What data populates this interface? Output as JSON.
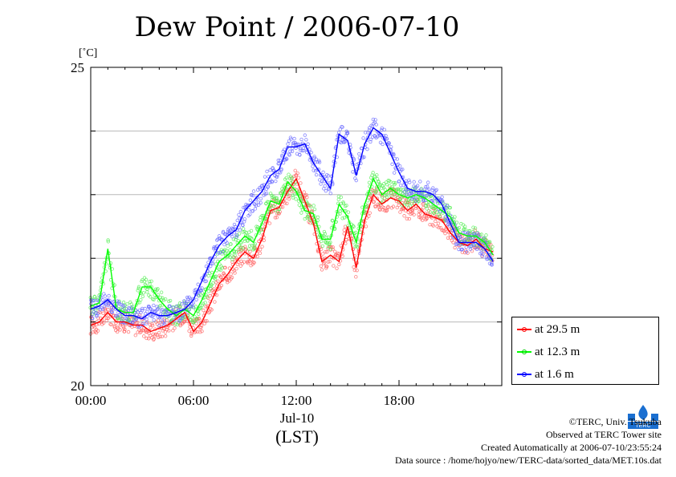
{
  "chart_data": {
    "type": "line",
    "title": "Dew Point / 2006-07-10",
    "ylabel": "[˚C]",
    "ylim": [
      20,
      25
    ],
    "yticks": [
      20,
      21,
      22,
      23,
      24,
      25
    ],
    "ytick_labels": [
      "20",
      "25"
    ],
    "xlim": [
      0,
      24
    ],
    "xticks": [
      0,
      6,
      12,
      18
    ],
    "xtick_labels": [
      "00:00",
      "06:00",
      "12:00",
      "18:00"
    ],
    "x_date_label": "Jul-10",
    "x_unit_label": "(LST)",
    "grid": true,
    "legend_position": "bottom-right outside",
    "x_hours": [
      0,
      0.5,
      1,
      1.5,
      2,
      2.5,
      3,
      3.5,
      4,
      4.5,
      5,
      5.5,
      6,
      6.5,
      7,
      7.5,
      8,
      8.5,
      9,
      9.5,
      10,
      10.5,
      11,
      11.5,
      12,
      12.5,
      13,
      13.5,
      14,
      14.5,
      15,
      15.5,
      16,
      16.5,
      17,
      17.5,
      18,
      18.5,
      19,
      19.5,
      20,
      20.5,
      21,
      21.5,
      22,
      22.5,
      23,
      23.5
    ],
    "series": [
      {
        "name": "at 29.5 m",
        "color": "#ff0000",
        "values": [
          20.95,
          21.0,
          21.15,
          21.0,
          21.0,
          20.95,
          20.95,
          20.85,
          20.9,
          20.95,
          21.05,
          21.15,
          20.85,
          21.0,
          21.3,
          21.6,
          21.75,
          21.95,
          22.1,
          22.0,
          22.3,
          22.75,
          22.8,
          23.05,
          23.25,
          22.9,
          22.55,
          21.95,
          22.05,
          21.95,
          22.5,
          21.85,
          22.6,
          23.0,
          22.85,
          22.95,
          22.9,
          22.75,
          22.85,
          22.7,
          22.65,
          22.6,
          22.4,
          22.25,
          22.2,
          22.3,
          22.15,
          22.1
        ]
      },
      {
        "name": "at 12.3 m",
        "color": "#00ff00",
        "values": [
          21.25,
          21.3,
          22.15,
          21.2,
          21.15,
          21.15,
          21.55,
          21.55,
          21.35,
          21.2,
          21.1,
          21.2,
          21.1,
          21.35,
          21.65,
          21.95,
          22.05,
          22.2,
          22.35,
          22.25,
          22.55,
          22.9,
          22.85,
          23.2,
          23.05,
          22.75,
          22.7,
          22.3,
          22.3,
          22.85,
          22.65,
          22.25,
          22.85,
          23.25,
          23.0,
          23.1,
          23.0,
          22.95,
          23.0,
          22.95,
          22.85,
          22.75,
          22.65,
          22.4,
          22.35,
          22.35,
          22.25,
          22.05
        ]
      },
      {
        "name": "at 1.6 m",
        "color": "#0000ff",
        "values": [
          21.2,
          21.25,
          21.35,
          21.2,
          21.1,
          21.1,
          21.05,
          21.15,
          21.1,
          21.1,
          21.15,
          21.2,
          21.35,
          21.65,
          21.95,
          22.2,
          22.35,
          22.45,
          22.75,
          22.9,
          23.05,
          23.3,
          23.4,
          23.75,
          23.75,
          23.8,
          23.5,
          23.3,
          23.1,
          23.95,
          23.85,
          23.3,
          23.8,
          24.05,
          23.95,
          23.65,
          23.35,
          23.1,
          23.05,
          23.05,
          23.0,
          22.85,
          22.55,
          22.25,
          22.25,
          22.25,
          22.15,
          21.95
        ]
      }
    ]
  },
  "footer": {
    "copyright": "©TERC, Univ. Tsukuba",
    "site": "Observed at TERC Tower site",
    "created": "Created Automatically at 2006-07-10/23:55:24",
    "source": "Data source : /home/hojyo/new/TERC-data/sorted_data/MET.10s.dat"
  },
  "logo": {
    "text": "TERC",
    "color": "#1a6fd1"
  }
}
